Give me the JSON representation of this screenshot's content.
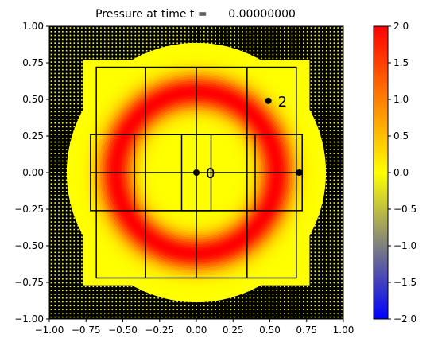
{
  "chart_data": {
    "type": "heatmap",
    "title": "Pressure at time t =      0.00000000",
    "xlabel": "",
    "ylabel": "",
    "xlim": [
      -1.0,
      1.0
    ],
    "ylim": [
      -1.0,
      1.0
    ],
    "x_ticks": [
      "−1.00",
      "−0.75",
      "−0.50",
      "−0.25",
      "0.00",
      "0.25",
      "0.50",
      "0.75",
      "1.00"
    ],
    "y_ticks": [
      "−1.00",
      "−0.75",
      "−0.50",
      "−0.25",
      "0.00",
      "0.25",
      "0.50",
      "0.75",
      "1.00"
    ],
    "x_tick_values": [
      -1.0,
      -0.75,
      -0.5,
      -0.25,
      0.0,
      0.25,
      0.5,
      0.75,
      1.0
    ],
    "y_tick_values": [
      -1.0,
      -0.75,
      -0.5,
      -0.25,
      0.0,
      0.25,
      0.5,
      0.75,
      1.0
    ],
    "colorbar": {
      "range": [
        -2.0,
        2.0
      ],
      "ticks": [
        "2.0",
        "1.5",
        "1.0",
        "0.5",
        "0.0",
        "−0.5",
        "−1.0",
        "−1.5",
        "−2.0"
      ],
      "tick_values": [
        2.0,
        1.5,
        1.0,
        0.5,
        0.0,
        -0.5,
        -1.0,
        -1.5,
        -2.0
      ],
      "colors": [
        "#0000ff",
        "#ffff00",
        "#ff0000"
      ]
    },
    "field": {
      "description": "ring",
      "ring_radius": 0.55,
      "ring_width": 0.15,
      "peak_value": 2.0,
      "background_value": 0.0
    },
    "pml_boundary": {
      "inner_half_width": 0.77,
      "grid_spacing": 0.026
    },
    "subdomain_rects": [
      [
        -0.68,
        -0.72,
        0.68,
        0.72
      ],
      [
        -0.72,
        -0.26,
        0.72,
        0.26
      ],
      [
        -0.42,
        -0.26,
        0.4,
        0.26
      ],
      [
        -0.1,
        -0.26,
        0.1,
        0.26
      ]
    ],
    "subdomain_lines": [
      [
        -0.345,
        -0.72,
        -0.345,
        0.72
      ],
      [
        0.345,
        -0.72,
        0.345,
        0.72
      ],
      [
        0.0,
        -0.72,
        0.0,
        0.72
      ],
      [
        -0.72,
        0.0,
        0.72,
        0.0
      ]
    ],
    "points": [
      {
        "label": "0",
        "x": 0.0,
        "y": 0.0
      },
      {
        "label": "2",
        "x": 0.49,
        "y": 0.49
      },
      {
        "label": "",
        "x": 0.7,
        "y": 0.0
      }
    ]
  }
}
